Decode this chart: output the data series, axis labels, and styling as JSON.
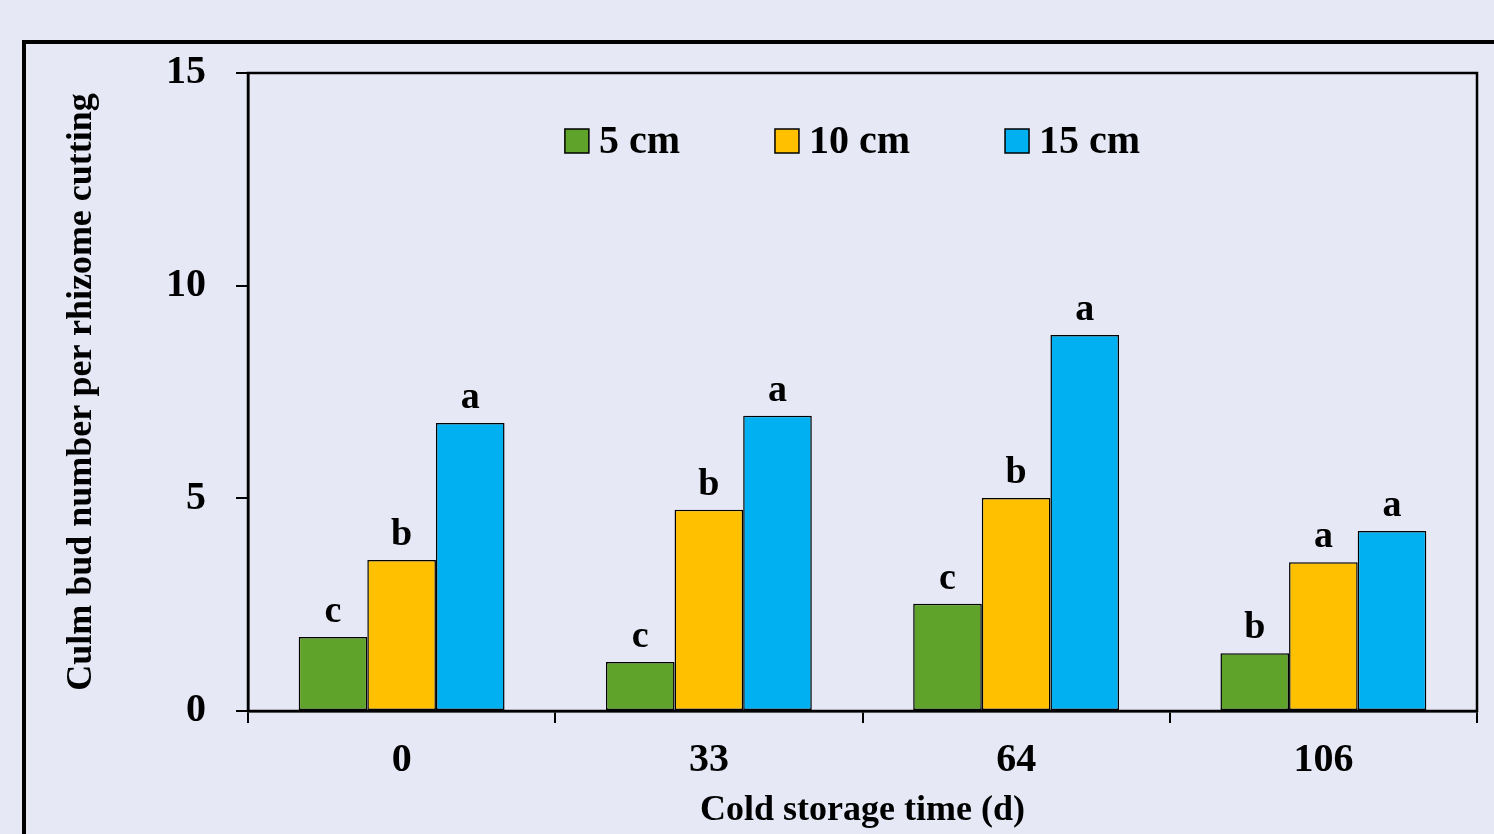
{
  "chart_data": {
    "type": "bar",
    "xlabel": "Cold storage time (d)",
    "ylabel": "Culm bud number per rhizome cutting",
    "categories": [
      "0",
      "33",
      "64",
      "106"
    ],
    "series": [
      {
        "name": "5 cm",
        "color": "#5fa32a",
        "values": [
          1.74,
          1.15,
          2.52,
          1.36
        ],
        "value_labels": [
          "c",
          "c",
          "c",
          "b"
        ]
      },
      {
        "name": "10 cm",
        "color": "#ffc000",
        "values": [
          3.55,
          4.73,
          5.01,
          3.5
        ],
        "value_labels": [
          "b",
          "b",
          "b",
          "a"
        ]
      },
      {
        "name": "15 cm",
        "color": "#00b0f0",
        "values": [
          6.77,
          6.94,
          8.84,
          4.23
        ],
        "value_labels": [
          "a",
          "a",
          "a",
          "a"
        ]
      }
    ],
    "ylim": [
      0,
      15
    ],
    "yticks": [
      0,
      5,
      10,
      15
    ],
    "grid": false,
    "legend": "top"
  }
}
